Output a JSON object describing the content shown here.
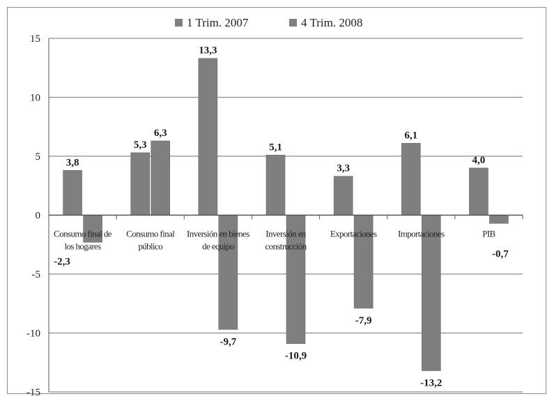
{
  "chart_data": {
    "type": "bar",
    "categories": [
      [
        "Consumo final de",
        "los hogares"
      ],
      [
        "Consumo final",
        "público"
      ],
      [
        "Inversión en bienes",
        "de equipo"
      ],
      [
        "Inversión en",
        "construcción"
      ],
      [
        "Exportaciones"
      ],
      [
        "Importaciones"
      ],
      [
        "PIB"
      ]
    ],
    "series": [
      {
        "name": "1 Trim. 2007",
        "values": [
          3.8,
          5.3,
          13.3,
          5.1,
          3.3,
          6.1,
          4.0
        ],
        "labels": [
          "3,8",
          "5,3",
          "13,3",
          "5,1",
          "3,3",
          "6,1",
          "4,0"
        ]
      },
      {
        "name": "4 Trim. 2008",
        "values": [
          -2.3,
          6.3,
          -9.7,
          -10.9,
          -7.9,
          -13.2,
          -0.7
        ],
        "labels": [
          "-2,3",
          "6,3",
          "-9,7",
          "-10,9",
          "-7,9",
          "-13,2",
          "-0,7"
        ]
      }
    ],
    "ylim": [
      -15,
      15
    ],
    "yticks": [
      15,
      10,
      5,
      0,
      -5,
      -10,
      -15
    ],
    "grid": true,
    "legend_position": "top",
    "colors": {
      "series": "#7f7f7f",
      "grid": "#8c8c8c",
      "axis": "#555555"
    }
  }
}
